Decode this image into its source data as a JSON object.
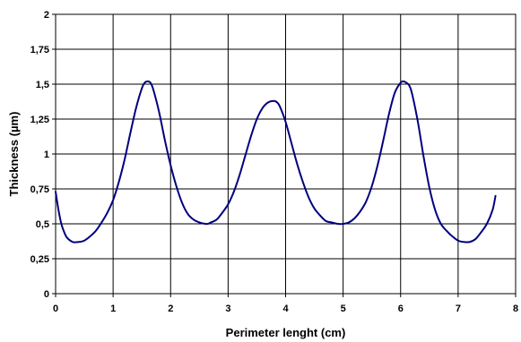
{
  "chart_data": {
    "type": "line",
    "title": "",
    "xlabel": "Perimeter lenght (cm)",
    "ylabel": "Thickness (µm)",
    "xlim": [
      0,
      8
    ],
    "ylim": [
      0,
      2
    ],
    "x_ticks": [
      "0",
      "1",
      "2",
      "3",
      "4",
      "5",
      "6",
      "7",
      "8"
    ],
    "y_ticks": [
      "0",
      "0,25",
      "0,5",
      "0,75",
      "1",
      "1,25",
      "1,5",
      "1,75",
      "2"
    ],
    "grid": true,
    "legend": "none",
    "line_color": "#000080",
    "series": [
      {
        "x": [
          0.0,
          0.05,
          0.1,
          0.15,
          0.2,
          0.3,
          0.4,
          0.5,
          0.6,
          0.7,
          0.8,
          0.9,
          1.0,
          1.1,
          1.2,
          1.3,
          1.4,
          1.5,
          1.55,
          1.6,
          1.65,
          1.7,
          1.8,
          1.9,
          2.0,
          2.1,
          2.2,
          2.3,
          2.4,
          2.5,
          2.6,
          2.65,
          2.7,
          2.8,
          2.9,
          3.0,
          3.1,
          3.2,
          3.3,
          3.4,
          3.5,
          3.6,
          3.7,
          3.8,
          3.85,
          3.9,
          4.0,
          4.1,
          4.2,
          4.3,
          4.4,
          4.5,
          4.6,
          4.7,
          4.8,
          4.9,
          5.0,
          5.1,
          5.2,
          5.3,
          5.4,
          5.5,
          5.6,
          5.7,
          5.8,
          5.9,
          6.0,
          6.05,
          6.1,
          6.15,
          6.2,
          6.3,
          6.4,
          6.5,
          6.6,
          6.7,
          6.8,
          6.9,
          7.0,
          7.1,
          7.2,
          7.3,
          7.4,
          7.5,
          7.6,
          7.65
        ],
        "y": [
          0.73,
          0.6,
          0.5,
          0.44,
          0.4,
          0.37,
          0.37,
          0.38,
          0.41,
          0.45,
          0.51,
          0.58,
          0.67,
          0.8,
          0.96,
          1.15,
          1.33,
          1.47,
          1.51,
          1.52,
          1.51,
          1.46,
          1.3,
          1.1,
          0.92,
          0.77,
          0.65,
          0.57,
          0.53,
          0.51,
          0.5,
          0.5,
          0.51,
          0.53,
          0.58,
          0.64,
          0.73,
          0.85,
          0.99,
          1.13,
          1.25,
          1.33,
          1.37,
          1.38,
          1.37,
          1.34,
          1.23,
          1.08,
          0.93,
          0.8,
          0.69,
          0.61,
          0.56,
          0.52,
          0.51,
          0.5,
          0.5,
          0.51,
          0.54,
          0.59,
          0.66,
          0.77,
          0.92,
          1.1,
          1.29,
          1.44,
          1.51,
          1.52,
          1.51,
          1.49,
          1.43,
          1.23,
          0.98,
          0.76,
          0.6,
          0.5,
          0.45,
          0.41,
          0.38,
          0.37,
          0.37,
          0.39,
          0.44,
          0.5,
          0.6,
          0.7
        ]
      }
    ]
  }
}
